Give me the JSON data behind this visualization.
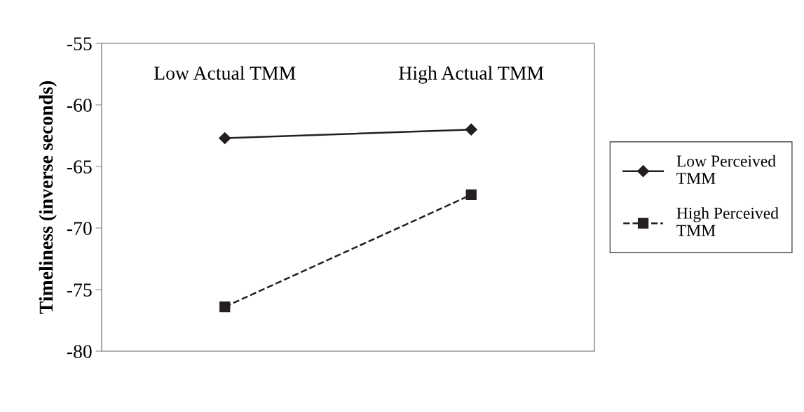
{
  "chart_data": {
    "type": "line",
    "ylabel": "Timeliness (inverse seconds)",
    "categories": [
      "Low Actual TMM",
      "High Actual TMM"
    ],
    "series": [
      {
        "name": "Low Perceived TMM",
        "color": "#231f20",
        "values": [
          -62.7,
          -62.0
        ],
        "marker": "diamond",
        "line_style": "solid"
      },
      {
        "name": "High Perceived TMM",
        "color": "#231f20",
        "values": [
          -76.4,
          -67.3
        ],
        "marker": "square",
        "line_style": "dashed"
      }
    ],
    "ylim": [
      -80,
      -55
    ],
    "yticks": [
      -80,
      -75,
      -70,
      -65,
      -60,
      -55
    ],
    "grid": false,
    "legend": "right"
  }
}
